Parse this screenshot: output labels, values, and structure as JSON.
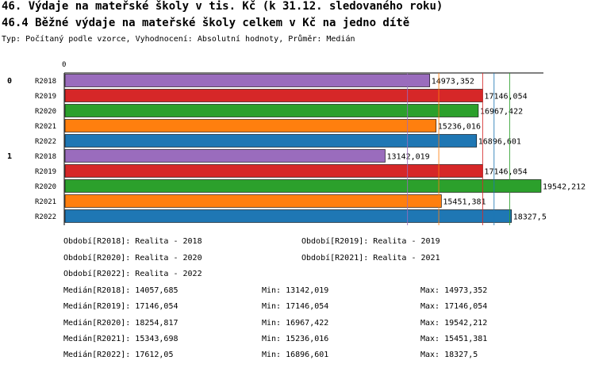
{
  "title": "46. Výdaje na mateřské školy v tis. Kč (k 31.12. sledovaného roku)",
  "subtitle_line": "46.4 Běžné výdaje na mateřské školy celkem v Kč na jedno dítě",
  "meta_line": "Typ: Počítaný podle vzorce, Vyhodnocení: Absolutní hodnoty, Průměr: Medián",
  "colors": {
    "R2018": "#9a6cbd",
    "R2019": "#d62728",
    "R2020": "#2ca02c",
    "R2021": "#ff7f0e",
    "R2022": "#1f77b4"
  },
  "chart_data": {
    "type": "bar",
    "orientation": "horizontal",
    "x_axis_tick_label": "0",
    "xlim": [
      0,
      19542.212
    ],
    "groups": [
      {
        "label": "0",
        "bars": [
          {
            "category": "R2018",
            "value": 14973.352,
            "value_label": "14973,352"
          },
          {
            "category": "R2019",
            "value": 17146.054,
            "value_label": "17146,054"
          },
          {
            "category": "R2020",
            "value": 16967.422,
            "value_label": "16967,422"
          },
          {
            "category": "R2021",
            "value": 15236.016,
            "value_label": "15236,016"
          },
          {
            "category": "R2022",
            "value": 16896.601,
            "value_label": "16896,601"
          }
        ]
      },
      {
        "label": "1",
        "bars": [
          {
            "category": "R2018",
            "value": 13142.019,
            "value_label": "13142,019"
          },
          {
            "category": "R2019",
            "value": 17146.054,
            "value_label": "17146,054"
          },
          {
            "category": "R2020",
            "value": 19542.212,
            "value_label": "19542,212"
          },
          {
            "category": "R2021",
            "value": 15451.381,
            "value_label": "15451,381"
          },
          {
            "category": "R2022",
            "value": 18327.5,
            "value_label": "18327,5"
          }
        ]
      }
    ],
    "median_lines": [
      {
        "category": "R2018",
        "value": 14057.685
      },
      {
        "category": "R2019",
        "value": 17146.054
      },
      {
        "category": "R2020",
        "value": 18254.817
      },
      {
        "category": "R2021",
        "value": 15343.698
      },
      {
        "category": "R2022",
        "value": 17612.05
      }
    ]
  },
  "periods": [
    "Období[R2018]: Realita - 2018",
    "Období[R2019]: Realita - 2019",
    "Období[R2020]: Realita - 2020",
    "Období[R2021]: Realita - 2021",
    "Období[R2022]: Realita - 2022"
  ],
  "stats": [
    {
      "median": "Medián[R2018]: 14057,685",
      "min": "Min: 13142,019",
      "max": "Max: 14973,352"
    },
    {
      "median": "Medián[R2019]: 17146,054",
      "min": "Min: 17146,054",
      "max": "Max: 17146,054"
    },
    {
      "median": "Medián[R2020]: 18254,817",
      "min": "Min: 16967,422",
      "max": "Max: 19542,212"
    },
    {
      "median": "Medián[R2021]: 15343,698",
      "min": "Min: 15236,016",
      "max": "Max: 15451,381"
    },
    {
      "median": "Medián[R2022]: 17612,05",
      "min": "Min: 16896,601",
      "max": "Max: 18327,5"
    }
  ]
}
